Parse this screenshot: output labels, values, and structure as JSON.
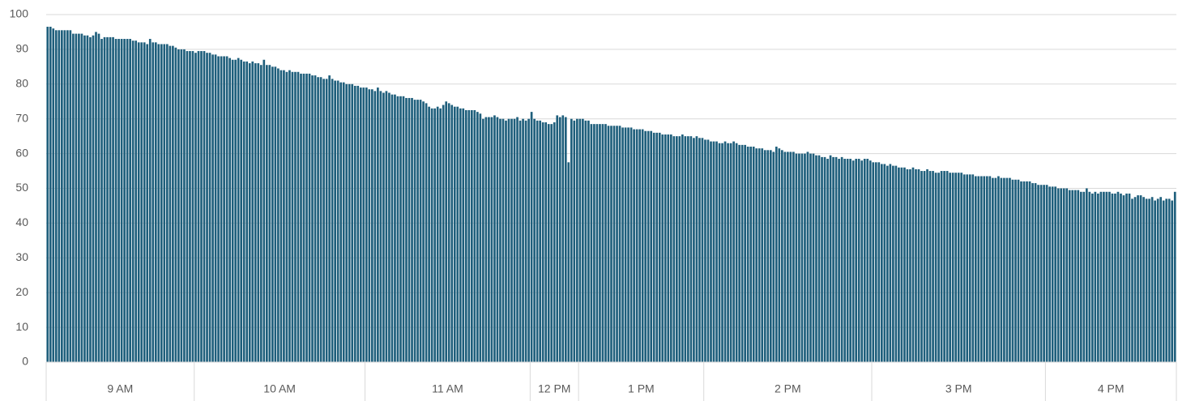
{
  "chart_data": {
    "type": "bar",
    "color": "#1f5f7c",
    "grid": true,
    "ylim": [
      0,
      100
    ],
    "yticks": [
      0,
      10,
      20,
      30,
      40,
      50,
      60,
      70,
      80,
      90,
      100
    ],
    "groups": [
      {
        "label": "9 AM",
        "values": [
          96.5,
          96.5,
          96,
          95.5,
          95.5,
          95.5,
          95.5,
          95.5,
          95.5,
          94.5,
          94.5,
          94.5,
          94.5,
          94,
          94,
          93.5,
          94,
          95,
          94.5,
          93,
          93.5,
          93.5,
          93.5,
          93.5,
          93,
          93,
          93,
          93,
          93,
          93,
          92.5,
          92.5,
          92,
          92,
          92,
          91.5,
          93,
          92,
          92,
          91.5,
          91.5,
          91.5,
          91.5,
          91,
          91,
          90.5,
          90,
          90,
          90,
          89.5,
          89.5,
          89.5
        ]
      },
      {
        "label": "10 AM",
        "values": [
          89,
          89.5,
          89.5,
          89.5,
          89,
          89,
          88.5,
          88.5,
          88,
          88,
          88,
          88,
          87.5,
          87,
          87,
          87.5,
          87,
          86.5,
          86.5,
          86,
          86.5,
          86,
          86,
          85.5,
          87,
          85.5,
          85.5,
          85,
          85,
          84.5,
          84,
          84,
          83.5,
          84,
          83.5,
          83.5,
          83.5,
          83,
          83,
          83,
          83,
          82.5,
          82.5,
          82,
          82,
          81.5,
          81.5,
          82.5,
          81.5,
          81,
          81,
          80.5,
          80.5,
          80,
          80,
          80,
          79.5,
          79.5,
          79,
          79
        ]
      },
      {
        "label": "11 AM",
        "values": [
          79,
          78.5,
          78.5,
          78,
          79,
          78,
          77.5,
          78,
          77.5,
          77,
          77,
          76.5,
          76.5,
          76.5,
          76,
          76,
          76,
          75.5,
          75.5,
          75.5,
          75,
          74.5,
          73.5,
          73,
          73,
          73.5,
          73,
          74,
          75,
          74.5,
          74,
          73.5,
          73.5,
          73,
          73,
          72.5,
          72.5,
          72.5,
          72.5,
          72,
          71.5,
          70,
          70.5,
          70.5,
          70.5,
          71,
          70.5,
          70,
          70,
          69.5,
          70,
          70,
          70,
          70.5,
          69.5,
          70,
          69.5,
          70
        ]
      },
      {
        "label": "12 PM",
        "values": [
          72,
          70,
          69.5,
          69.5,
          69,
          69,
          68.5,
          68.5,
          69,
          71,
          70.5,
          71,
          70.5,
          57.5,
          70,
          69.5,
          70
        ]
      },
      {
        "label": "1 PM",
        "values": [
          70,
          70,
          69.5,
          69.5,
          68.5,
          68.5,
          68.5,
          68.5,
          68.5,
          68.5,
          68,
          68,
          68,
          68,
          68,
          67.5,
          67.5,
          67.5,
          67.5,
          67,
          67,
          67,
          67,
          66.5,
          66.5,
          66.5,
          66,
          66,
          66,
          65.5,
          65.5,
          65.5,
          65.5,
          65,
          65,
          65,
          65.5,
          65,
          65,
          65,
          64.5,
          65,
          64.5,
          64.5
        ]
      },
      {
        "label": "2 PM",
        "values": [
          64,
          64,
          63.5,
          63.5,
          63.5,
          63,
          63,
          63.5,
          63,
          63,
          63.5,
          63,
          62.5,
          62.5,
          62.5,
          62,
          62,
          62,
          61.5,
          61.5,
          61.5,
          61,
          61,
          61,
          60.5,
          62,
          61.5,
          61,
          60.5,
          60.5,
          60.5,
          60.5,
          60,
          60,
          60,
          60,
          60.5,
          60,
          60,
          59.5,
          59.5,
          59,
          59,
          58.5,
          59.5,
          59,
          59,
          58.5,
          59,
          58.5,
          58.5,
          58.5,
          58,
          58.5,
          58.5,
          58,
          58.5,
          58.5,
          58
        ]
      },
      {
        "label": "3 PM",
        "values": [
          57.5,
          57.5,
          57.5,
          57,
          57,
          56.5,
          57,
          56.5,
          56.5,
          56,
          56,
          56,
          55.5,
          55.5,
          56,
          55.5,
          55.5,
          55,
          55,
          55.5,
          55,
          55,
          54.5,
          54.5,
          55,
          55,
          55,
          54.5,
          54.5,
          54.5,
          54.5,
          54.5,
          54,
          54,
          54,
          54,
          53.5,
          53.5,
          53.5,
          53.5,
          53.5,
          53.5,
          53,
          53,
          53.5,
          53,
          53,
          53,
          53,
          52.5,
          52.5,
          52.5,
          52,
          52,
          52,
          52,
          51.5,
          51.5,
          51,
          51,
          51
        ]
      },
      {
        "label": "4 PM",
        "values": [
          51,
          50.5,
          50.5,
          50.5,
          50,
          50,
          50,
          50,
          49.5,
          49.5,
          49.5,
          49.5,
          49,
          49,
          50,
          49,
          48.5,
          49,
          48.5,
          49,
          49,
          49,
          49,
          48.5,
          48.5,
          49,
          48.5,
          48,
          48.5,
          48.5,
          47,
          47.5,
          48,
          48,
          47.5,
          47,
          47,
          47.5,
          46.5,
          47,
          47.5,
          46.5,
          47,
          47,
          46.5,
          49
        ]
      }
    ]
  }
}
